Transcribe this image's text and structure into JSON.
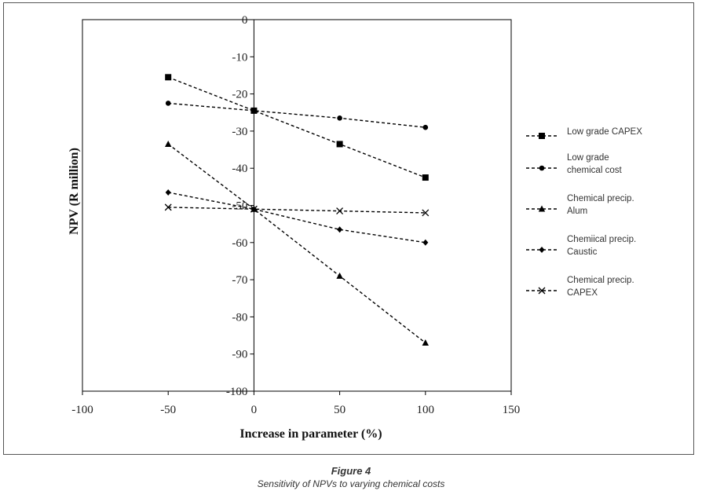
{
  "figure": {
    "label": "Figure 4",
    "caption": "Sensitivity of NPVs to varying chemical costs"
  },
  "chart_data": {
    "type": "line",
    "xlabel": "Increase in parameter (%)",
    "ylabel": "NPV (R million)",
    "xlim": [
      -100,
      150
    ],
    "ylim": [
      -100,
      0
    ],
    "xticks": [
      -100,
      -50,
      0,
      50,
      100,
      150
    ],
    "yticks": [
      0,
      -10,
      -20,
      -30,
      -40,
      -50,
      -60,
      -70,
      -80,
      -90,
      -100
    ],
    "grid": false,
    "legend_position": "right",
    "x": [
      -50,
      0,
      50,
      100
    ],
    "series": [
      {
        "name": "Low grade CAPEX",
        "name_lines": [
          "Low grade CAPEX"
        ],
        "marker": "square",
        "values": [
          -15.5,
          -24.5,
          -33.5,
          -42.5
        ]
      },
      {
        "name": "Low grade chemical cost",
        "name_lines": [
          "Low grade",
          "chemical cost"
        ],
        "marker": "circle",
        "values": [
          -22.5,
          -24.5,
          -26.5,
          -29
        ]
      },
      {
        "name": "Chemical precip. Alum",
        "name_lines": [
          "Chemical precip.",
          "Alum"
        ],
        "marker": "triangle",
        "values": [
          -33.5,
          -51,
          -69,
          -87
        ]
      },
      {
        "name": "Chemiical precip. Caustic",
        "name_lines": [
          "Chemiical precip.",
          "Caustic"
        ],
        "marker": "diamond",
        "values": [
          -46.5,
          -51,
          -56.5,
          -60
        ]
      },
      {
        "name": "Chemical precip. CAPEX",
        "name_lines": [
          "Chemical precip.",
          "CAPEX"
        ],
        "marker": "x",
        "values": [
          -50.5,
          -51,
          -51.5,
          -52
        ]
      }
    ]
  }
}
